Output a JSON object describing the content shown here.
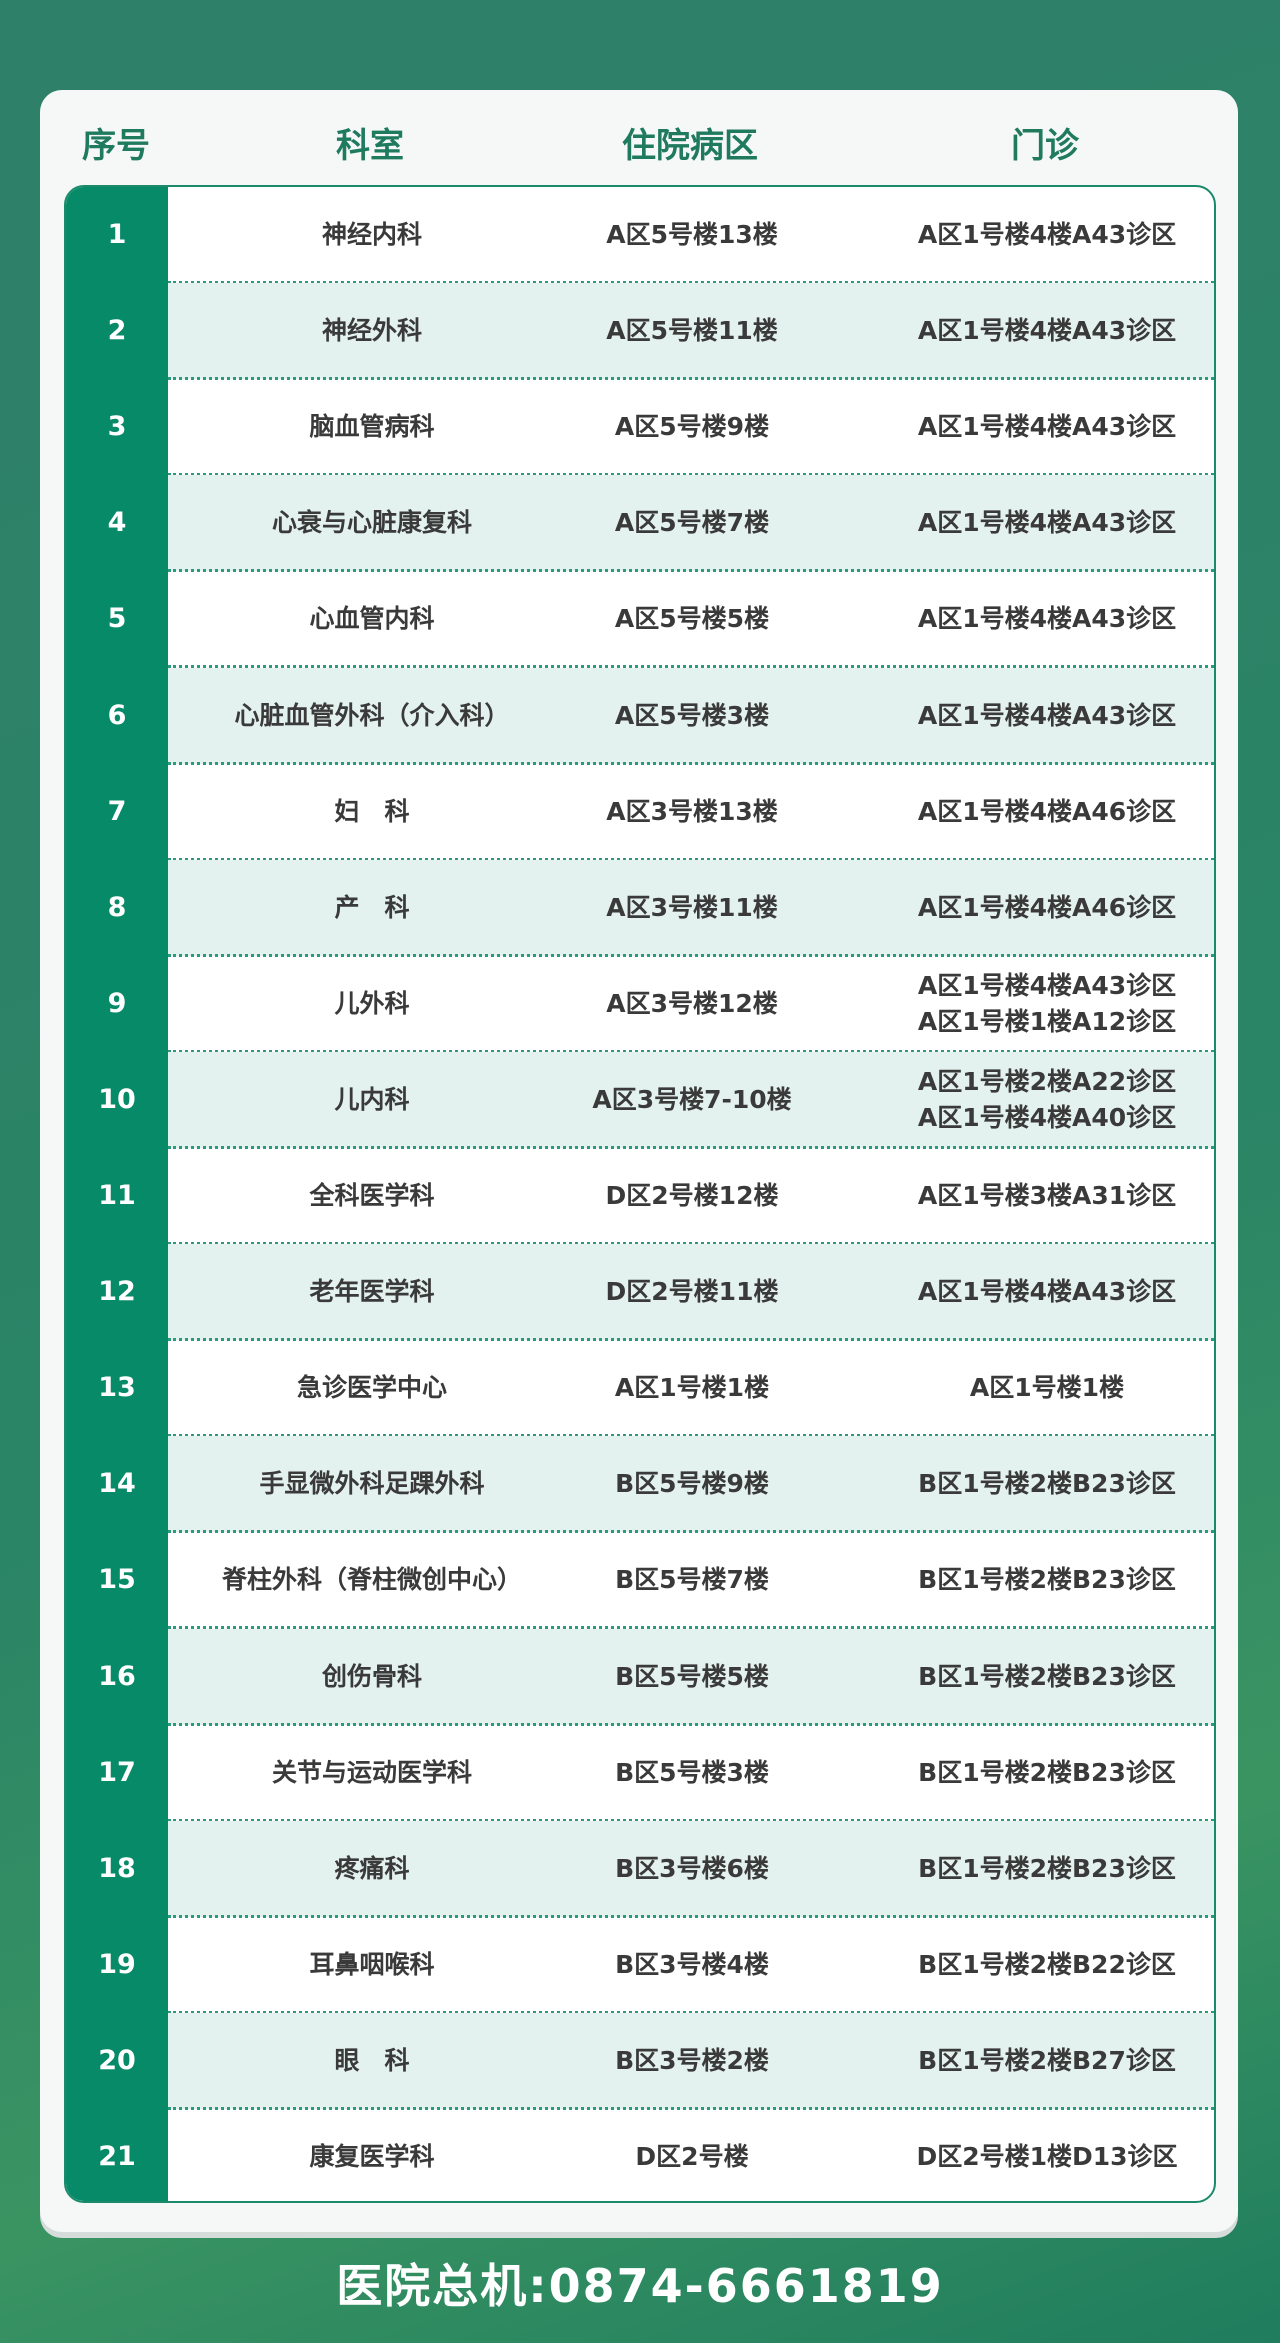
{
  "headers": [
    "序号",
    "科室",
    "住院病区",
    "门诊"
  ],
  "rows": [
    [
      "1",
      "神经内科",
      "A区5号楼13楼",
      [
        "A区1号楼4楼A43诊区"
      ]
    ],
    [
      "2",
      "神经外科",
      "A区5号楼11楼",
      [
        "A区1号楼4楼A43诊区"
      ]
    ],
    [
      "3",
      "脑血管病科",
      "A区5号楼9楼",
      [
        "A区1号楼4楼A43诊区"
      ]
    ],
    [
      "4",
      "心衰与心脏康复科",
      "A区5号楼7楼",
      [
        "A区1号楼4楼A43诊区"
      ]
    ],
    [
      "5",
      "心血管内科",
      "A区5号楼5楼",
      [
        "A区1号楼4楼A43诊区"
      ]
    ],
    [
      "6",
      "心脏血管外科（介入科）",
      "A区5号楼3楼",
      [
        "A区1号楼4楼A43诊区"
      ]
    ],
    [
      "7",
      "妇　科",
      "A区3号楼13楼",
      [
        "A区1号楼4楼A46诊区"
      ]
    ],
    [
      "8",
      "产　科",
      "A区3号楼11楼",
      [
        "A区1号楼4楼A46诊区"
      ]
    ],
    [
      "9",
      "儿外科",
      "A区3号楼12楼",
      [
        "A区1号楼4楼A43诊区",
        "A区1号楼1楼A12诊区"
      ]
    ],
    [
      "10",
      "儿内科",
      "A区3号楼7-10楼",
      [
        "A区1号楼2楼A22诊区",
        "A区1号楼4楼A40诊区"
      ]
    ],
    [
      "11",
      "全科医学科",
      "D区2号楼12楼",
      [
        "A区1号楼3楼A31诊区"
      ]
    ],
    [
      "12",
      "老年医学科",
      "D区2号楼11楼",
      [
        "A区1号楼4楼A43诊区"
      ]
    ],
    [
      "13",
      "急诊医学中心",
      "A区1号楼1楼",
      [
        "A区1号楼1楼"
      ]
    ],
    [
      "14",
      "手显微外科足踝外科",
      "B区5号楼9楼",
      [
        "B区1号楼2楼B23诊区"
      ]
    ],
    [
      "15",
      "脊柱外科（脊柱微创中心）",
      "B区5号楼7楼",
      [
        "B区1号楼2楼B23诊区"
      ]
    ],
    [
      "16",
      "创伤骨科",
      "B区5号楼5楼",
      [
        "B区1号楼2楼B23诊区"
      ]
    ],
    [
      "17",
      "关节与运动医学科",
      "B区5号楼3楼",
      [
        "B区1号楼2楼B23诊区"
      ]
    ],
    [
      "18",
      "疼痛科",
      "B区3号楼6楼",
      [
        "B区1号楼2楼B23诊区"
      ]
    ],
    [
      "19",
      "耳鼻咽喉科",
      "B区3号楼4楼",
      [
        "B区1号楼2楼B22诊区"
      ]
    ],
    [
      "20",
      "眼　科",
      "B区3号楼2楼",
      [
        "B区1号楼2楼B27诊区"
      ]
    ],
    [
      "21",
      "康复医学科",
      "D区2号楼",
      [
        "D区2号楼1楼D13诊区"
      ]
    ]
  ],
  "footer": "医院总机:0874-6661819",
  "colors": {
    "background": "#2f8068",
    "accent": "#078a68",
    "header_text": "#1f7a5e",
    "alt_row": "#e4f2ef"
  }
}
